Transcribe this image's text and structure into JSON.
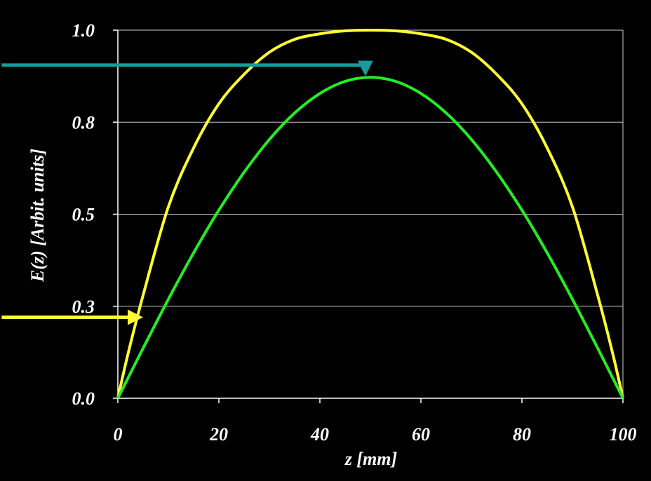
{
  "chart_data": {
    "type": "line",
    "title": "",
    "xlabel": "z [mm]",
    "ylabel": "E(z) [Arbit. units]",
    "xlim": [
      0,
      100
    ],
    "ylim": [
      0,
      1
    ],
    "x_ticks": [
      0,
      20,
      40,
      60,
      80,
      100
    ],
    "x_tick_labels": [
      "0",
      "20",
      "40",
      "60",
      "80",
      "100"
    ],
    "y_ticks": [
      0,
      0.25,
      0.5,
      0.75,
      1.0
    ],
    "y_tick_labels": [
      "0.0",
      "0.3",
      "0.5",
      "0.8",
      "1.0"
    ],
    "grid": "horizontal",
    "background": "#000000",
    "series": [
      {
        "color": "#ffff33",
        "x": [
          0,
          2,
          5,
          10,
          15,
          20,
          25,
          30,
          35,
          40,
          45,
          50,
          55,
          60,
          65,
          70,
          75,
          80,
          85,
          90,
          95,
          98,
          100
        ],
        "values": [
          0,
          0.12,
          0.28,
          0.52,
          0.68,
          0.8,
          0.88,
          0.94,
          0.975,
          0.99,
          0.998,
          1.0,
          0.998,
          0.99,
          0.975,
          0.94,
          0.88,
          0.8,
          0.68,
          0.52,
          0.28,
          0.12,
          0
        ]
      },
      {
        "color": "#22ee22",
        "x": [
          0,
          5,
          10,
          15,
          20,
          25,
          30,
          35,
          40,
          45,
          50,
          55,
          60,
          65,
          70,
          75,
          80,
          85,
          90,
          95,
          100
        ],
        "values": [
          0,
          0.136,
          0.269,
          0.395,
          0.511,
          0.614,
          0.703,
          0.775,
          0.828,
          0.861,
          0.872,
          0.861,
          0.828,
          0.775,
          0.703,
          0.614,
          0.511,
          0.395,
          0.269,
          0.136,
          0
        ]
      }
    ],
    "annotations": [
      {
        "type": "arrow",
        "color": "#1a9a9a",
        "points": [
          [
            -23,
            0.905
          ],
          [
            49,
            0.905
          ],
          [
            49,
            0.875
          ]
        ]
      },
      {
        "type": "arrow",
        "color": "#ffff33",
        "points": [
          [
            -23,
            0.22
          ],
          [
            5,
            0.22
          ]
        ]
      }
    ]
  }
}
